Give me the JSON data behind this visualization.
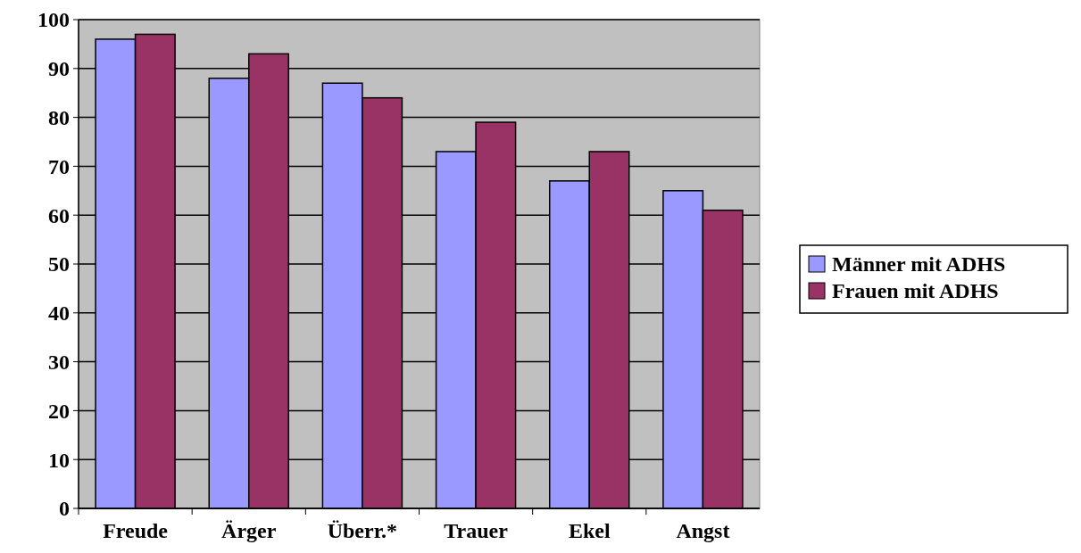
{
  "chart_data": {
    "type": "bar",
    "categories": [
      "Freude",
      "Ärger",
      "Überr.*",
      "Trauer",
      "Ekel",
      "Angst"
    ],
    "series": [
      {
        "name": "Männer mit ADHS",
        "color": "#9999ff",
        "values": [
          96,
          88,
          87,
          73,
          67,
          65
        ]
      },
      {
        "name": "Frauen mit ADHS",
        "color": "#993366",
        "values": [
          97,
          93,
          84,
          79,
          73,
          61
        ]
      }
    ],
    "ylim": [
      0,
      100
    ],
    "yticks": [
      0,
      10,
      20,
      30,
      40,
      50,
      60,
      70,
      80,
      90,
      100
    ],
    "grid": "y",
    "legend": "right"
  }
}
